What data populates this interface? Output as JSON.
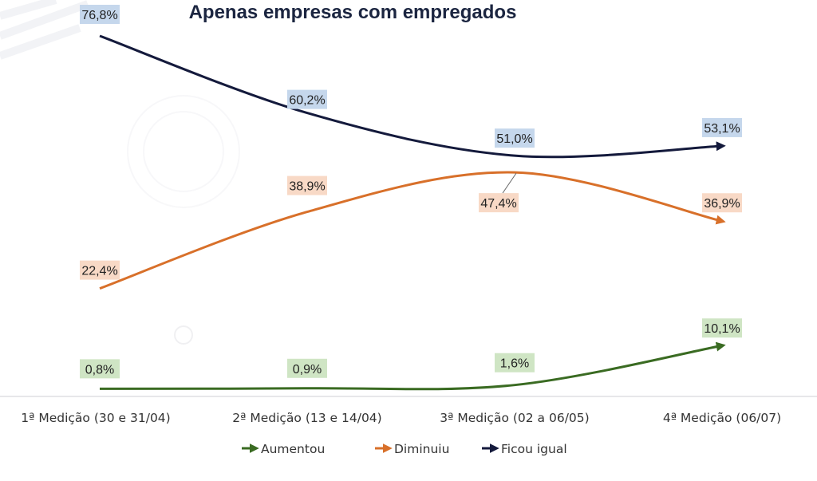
{
  "chart_data": {
    "type": "line",
    "title": "Apenas empresas com empregados",
    "categories": [
      "1ª Medição (30 e 31/04)",
      "2ª Medição (13 e 14/04)",
      "3ª Medição (02 a 06/05)",
      "4ª Medição (06/07)"
    ],
    "ylim": [
      0,
      80
    ],
    "grid": false,
    "legend_placement": "bottom",
    "series": [
      {
        "name": "Aumentou",
        "color": "#3a6b22",
        "label_bg": "#cfe5c4",
        "values": [
          0.8,
          0.9,
          1.6,
          10.1
        ],
        "labels": [
          "0,8%",
          "0,9%",
          "1,6%",
          "10,1%"
        ]
      },
      {
        "name": "Diminuiu",
        "color": "#d8702a",
        "label_bg": "#f8d9c6",
        "values": [
          22.4,
          38.9,
          47.4,
          36.9
        ],
        "labels": [
          "22,4%",
          "38,9%",
          "47,4%",
          "36,9%"
        ]
      },
      {
        "name": "Ficou igual",
        "color": "#141a3c",
        "label_bg": "#c5d7ec",
        "values": [
          76.8,
          60.2,
          51.0,
          53.1
        ],
        "labels": [
          "76,8%",
          "60,2%",
          "51,0%",
          "53,1%"
        ]
      }
    ]
  }
}
